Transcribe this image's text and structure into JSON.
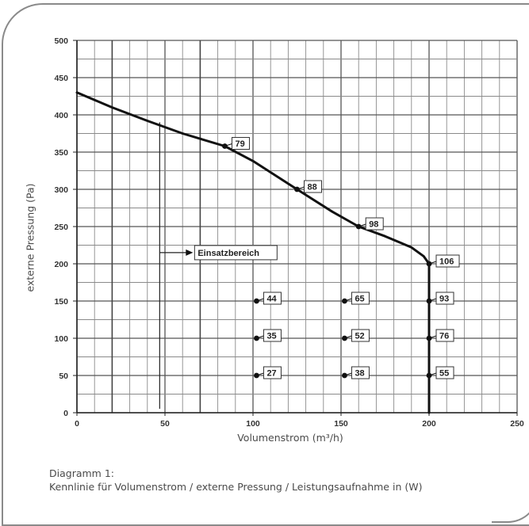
{
  "chart_data": {
    "type": "line",
    "xlabel": "Volumenstrom (m³/h)",
    "ylabel": "externe Pressung (Pa)",
    "xlim": [
      0,
      250
    ],
    "ylim": [
      0,
      500
    ],
    "x_ticks": [
      "0",
      "50",
      "100",
      "150",
      "200",
      "250"
    ],
    "y_ticks": [
      "0",
      "50",
      "100",
      "150",
      "200",
      "250",
      "300",
      "350",
      "400",
      "450",
      "500"
    ],
    "grid": true,
    "curve": {
      "x": [
        0,
        20,
        40,
        60,
        84,
        100,
        125,
        145,
        160,
        175,
        190,
        197,
        200,
        200
      ],
      "y": [
        430,
        410,
        392,
        375,
        358,
        338,
        300,
        270,
        250,
        237,
        222,
        210,
        200,
        0
      ]
    },
    "markers": [
      {
        "x": 84,
        "y": 358,
        "label": "79"
      },
      {
        "x": 125,
        "y": 300,
        "label": "88"
      },
      {
        "x": 160,
        "y": 250,
        "label": "98"
      },
      {
        "x": 200,
        "y": 200,
        "label": "106"
      },
      {
        "x": 102,
        "y": 150,
        "label": "44"
      },
      {
        "x": 152,
        "y": 150,
        "label": "65"
      },
      {
        "x": 200,
        "y": 150,
        "label": "93"
      },
      {
        "x": 102,
        "y": 100,
        "label": "35"
      },
      {
        "x": 152,
        "y": 100,
        "label": "52"
      },
      {
        "x": 200,
        "y": 100,
        "label": "76"
      },
      {
        "x": 102,
        "y": 50,
        "label": "27"
      },
      {
        "x": 152,
        "y": 50,
        "label": "38"
      },
      {
        "x": 200,
        "y": 50,
        "label": "55"
      }
    ],
    "annotation": {
      "label": "Einsatzbereich",
      "line_x": 47,
      "line_y_top": 390
    }
  },
  "caption": {
    "line1": "Diagramm 1:",
    "line2": "Kennlinie für Volumenstrom / externe Pressung / Leistungsaufnahme in (W)"
  }
}
